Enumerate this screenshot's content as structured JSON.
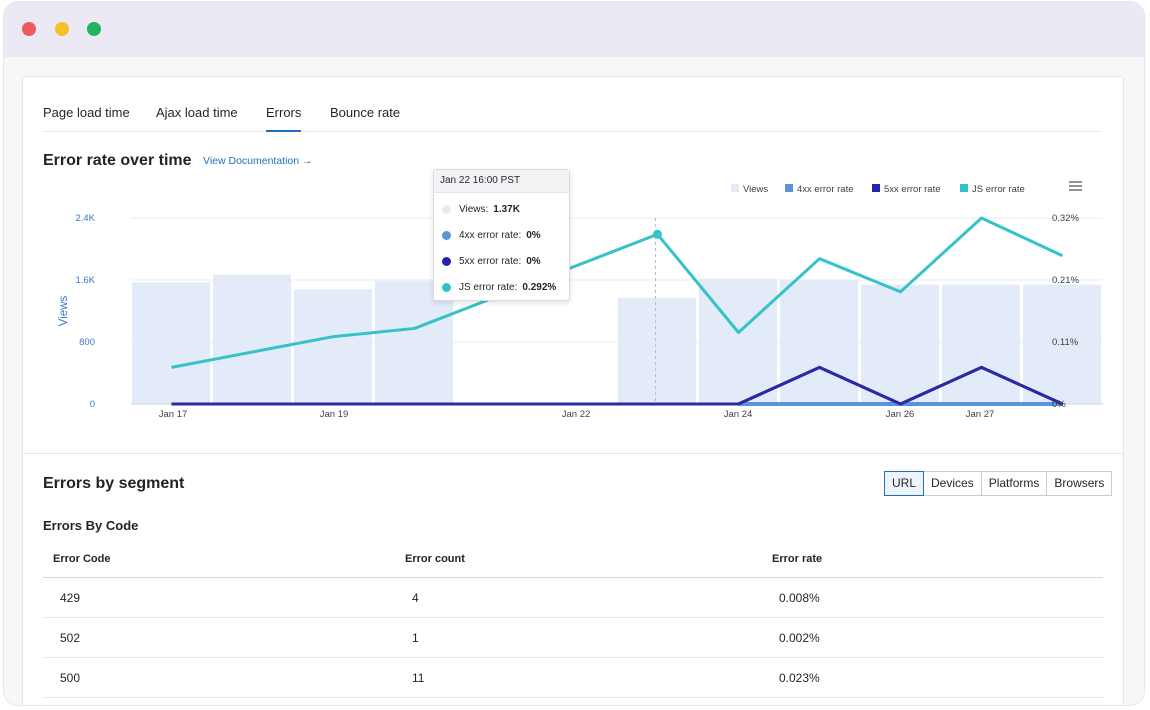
{
  "window": {
    "controls": [
      "close",
      "minimize",
      "maximize"
    ],
    "colors": {
      "close": "#ef5b5b",
      "minimize": "#f5c02c",
      "maximize": "#22b35e"
    }
  },
  "tabs": [
    {
      "label": "Page load time",
      "active": false
    },
    {
      "label": "Ajax load time",
      "active": false
    },
    {
      "label": "Errors",
      "active": true
    },
    {
      "label": "Bounce rate",
      "active": false
    }
  ],
  "chart_section": {
    "title": "Error rate over time",
    "doc_link": "View Documentation →",
    "menu_icon": "hamburger-menu-icon"
  },
  "tooltip": {
    "header": "Jan 22 16:00 PST",
    "rows": [
      {
        "label": "Views:",
        "value": "1.37K",
        "color": "#e4ebf8"
      },
      {
        "label": "4xx error rate:",
        "value": "0%",
        "color": "#5b92d8"
      },
      {
        "label": "5xx error rate:",
        "value": "0%",
        "color": "#2424a8"
      },
      {
        "label": "JS error rate:",
        "value": "0.292%",
        "color": "#2dc5c8"
      }
    ]
  },
  "chart_data": {
    "type": "bar",
    "title": "Error rate over time",
    "xlabel": "",
    "ylabel": "Views",
    "y_ticks": [
      "0",
      "800",
      "1.6K",
      "2.4K"
    ],
    "y2_ticks": [
      "0%",
      "0.11%",
      "0.21%",
      "0.32%"
    ],
    "ylim": [
      0,
      2400
    ],
    "y2lim": [
      0,
      0.32
    ],
    "x_ticks": [
      "Jan 17",
      "Jan 19",
      "Jan 22",
      "Jan 24",
      "Jan 26",
      "Jan 27"
    ],
    "legend": {
      "position": "top-right",
      "entries": [
        "Views",
        "4xx error rate",
        "5xx error rate",
        "JS error rate"
      ]
    },
    "series": [
      {
        "name": "Views",
        "kind": "bar",
        "color": "#e4ebf8",
        "values": [
          1570,
          1670,
          1480,
          1590,
          null,
          null,
          1370,
          1620,
          1600,
          1540,
          1540,
          1540
        ]
      },
      {
        "name": "JS error rate",
        "kind": "line",
        "color": "#35c2c8",
        "values": [
          0.063,
          null,
          0.116,
          0.13,
          null,
          null,
          0.292,
          0.123,
          0.25,
          0.193,
          0.32,
          0.255
        ]
      },
      {
        "name": "5xx error rate",
        "kind": "line",
        "color": "#2a2aa5",
        "values": [
          0,
          0,
          0,
          0,
          0,
          0,
          0,
          0,
          0.063,
          0,
          0.063,
          0
        ]
      },
      {
        "name": "4xx error rate",
        "kind": "line",
        "color": "#5b92d8",
        "values": [
          null,
          null,
          null,
          null,
          null,
          null,
          null,
          0,
          0,
          0,
          0,
          0
        ]
      }
    ]
  },
  "segment_section": {
    "title": "Errors by segment",
    "filters": [
      {
        "label": "URL",
        "active": true
      },
      {
        "label": "Devices",
        "active": false
      },
      {
        "label": "Platforms",
        "active": false
      },
      {
        "label": "Browsers",
        "active": false
      }
    ],
    "subtitle": "Errors By Code"
  },
  "errors_table": {
    "columns": [
      "Error Code",
      "Error count",
      "Error rate"
    ],
    "rows": [
      {
        "code": "429",
        "count": "4",
        "rate": "0.008%"
      },
      {
        "code": "502",
        "count": "1",
        "rate": "0.002%"
      },
      {
        "code": "500",
        "count": "11",
        "rate": "0.023%"
      }
    ]
  }
}
